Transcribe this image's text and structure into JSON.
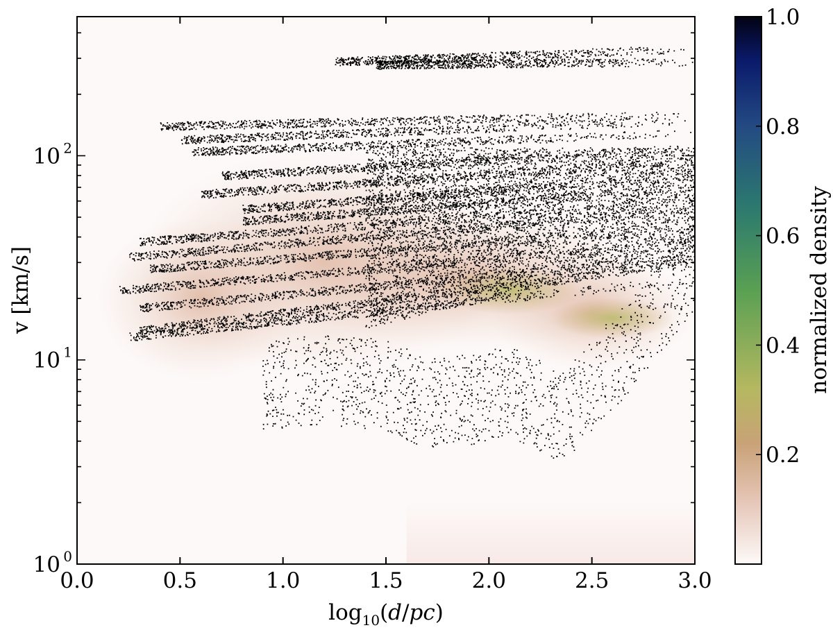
{
  "chart_data": {
    "type": "scatter",
    "xlabel": "log10(d/pc)",
    "ylabel": "v [km/s]",
    "xlim": [
      0.0,
      3.0
    ],
    "ylim": [
      1,
      480
    ],
    "yscale": "log",
    "x_ticks": [
      0.0,
      0.5,
      1.0,
      1.5,
      2.0,
      2.5,
      3.0
    ],
    "x_tick_labels": [
      "0.0",
      "0.5",
      "1.0",
      "1.5",
      "2.0",
      "2.5",
      "3.0"
    ],
    "y_major_ticks": [
      1,
      10,
      100
    ],
    "y_tick_labels": [
      "10^0",
      "10^1",
      "10^2"
    ],
    "background": "density map (colormap: normalized density)",
    "colorbar": {
      "label": "normalized density",
      "ticks": [
        0.2,
        0.4,
        0.6,
        0.8,
        1.0
      ],
      "tick_labels": [
        "0.2",
        "0.4",
        "0.6",
        "0.8",
        "1.0"
      ],
      "colors": [
        "#fdf9f8",
        "#d6a48a",
        "#b5b860",
        "#4a9a4f",
        "#275a82",
        "#0a1a6b",
        "#000000"
      ]
    },
    "point_color": "#000000",
    "tracks": [
      {
        "x": [
          1.25,
          3.0
        ],
        "y": [
          290,
          335
        ]
      },
      {
        "x": [
          1.45,
          3.0
        ],
        "y": [
          280,
          290
        ]
      },
      {
        "x": [
          0.4,
          3.0
        ],
        "y": [
          140,
          160
        ]
      },
      {
        "x": [
          0.5,
          3.0
        ],
        "y": [
          120,
          150
        ]
      },
      {
        "x": [
          0.55,
          3.0
        ],
        "y": [
          105,
          130
        ]
      },
      {
        "x": [
          0.7,
          3.0
        ],
        "y": [
          80,
          110
        ]
      },
      {
        "x": [
          0.6,
          3.0
        ],
        "y": [
          65,
          95
        ]
      },
      {
        "x": [
          0.8,
          3.0
        ],
        "y": [
          55,
          80
        ]
      },
      {
        "x": [
          0.8,
          3.0
        ],
        "y": [
          48,
          70
        ]
      },
      {
        "x": [
          0.3,
          3.0
        ],
        "y": [
          38,
          60
        ]
      },
      {
        "x": [
          0.25,
          3.0
        ],
        "y": [
          32,
          55
        ]
      },
      {
        "x": [
          0.35,
          3.0
        ],
        "y": [
          28,
          45
        ]
      },
      {
        "x": [
          0.2,
          3.0
        ],
        "y": [
          22,
          38
        ]
      },
      {
        "x": [
          0.3,
          3.0
        ],
        "y": [
          18,
          32
        ]
      },
      {
        "x": [
          0.3,
          3.0
        ],
        "y": [
          14,
          30
        ]
      },
      {
        "x": [
          0.25,
          3.0
        ],
        "y": [
          13,
          25
        ]
      }
    ],
    "lower_envelope": {
      "x": [
        0.9,
        1.2,
        1.5,
        1.7,
        1.9,
        2.1,
        2.25,
        2.33,
        2.4,
        2.5,
        2.65,
        2.8,
        3.0
      ],
      "y": [
        4.5,
        4.8,
        4.5,
        3.7,
        3.8,
        4.2,
        3.6,
        3.2,
        3.5,
        4.6,
        6.5,
        10,
        18
      ]
    }
  }
}
